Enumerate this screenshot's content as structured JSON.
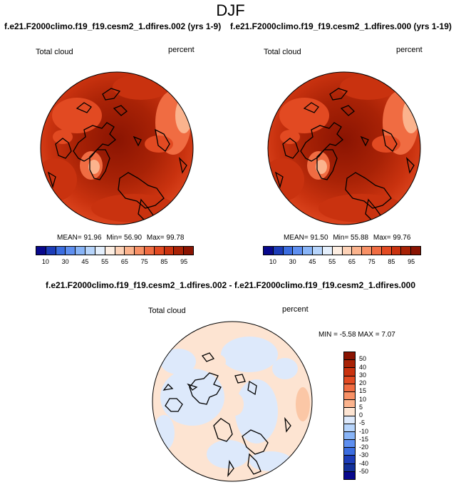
{
  "title": "DJF",
  "panels": [
    {
      "case": "f.e21.F2000climo.f19_f19.cesm2_1.dfires.002 (yrs 1-9)",
      "variable": "Total cloud",
      "units": "percent",
      "stats": {
        "mean": "MEAN=  91.96",
        "min": "Min=  56.90",
        "max": "Max=  99.78"
      }
    },
    {
      "case": "f.e21.F2000climo.f19_f19.cesm2_1.dfires.000 (yrs 1-19)",
      "variable": "Total cloud",
      "units": "percent",
      "stats": {
        "mean": "MEAN=  91.50",
        "min": "Min=  55.88",
        "max": "Max=  99.76"
      }
    }
  ],
  "colorbar": {
    "ticks": [
      "10",
      "30",
      "45",
      "55",
      "65",
      "75",
      "85",
      "95"
    ],
    "colors": [
      "#08088c",
      "#1c3cb8",
      "#3b6de0",
      "#5e8ff0",
      "#88b4f7",
      "#b6d4fb",
      "#e4effc",
      "#fdeee2",
      "#fdd2b7",
      "#fbb38d",
      "#f89166",
      "#f06c42",
      "#e24a22",
      "#c9320f",
      "#a82206",
      "#8a1402"
    ]
  },
  "difference": {
    "title": "f.e21.F2000climo.f19_f19.cesm2_1.dfires.002 - f.e21.F2000climo.f19_f19.cesm2_1.dfires.000",
    "variable": "Total cloud",
    "units": "percent",
    "minmax": "MIN =  -5.58 MAX =  7.07",
    "colorbar": {
      "ticks": [
        "50",
        "40",
        "30",
        "20",
        "15",
        "10",
        "5",
        "0",
        "-5",
        "-10",
        "-15",
        "-20",
        "-30",
        "-40",
        "-50"
      ],
      "colors": [
        "#8a1402",
        "#a82206",
        "#c9320f",
        "#e24a22",
        "#f06c42",
        "#f89166",
        "#fbb38d",
        "#fde4d2",
        "#dde9fb",
        "#b6d4fb",
        "#88b4f7",
        "#5e8ff0",
        "#3b6de0",
        "#1c3cb8",
        "#123099",
        "#08088c"
      ]
    }
  }
}
